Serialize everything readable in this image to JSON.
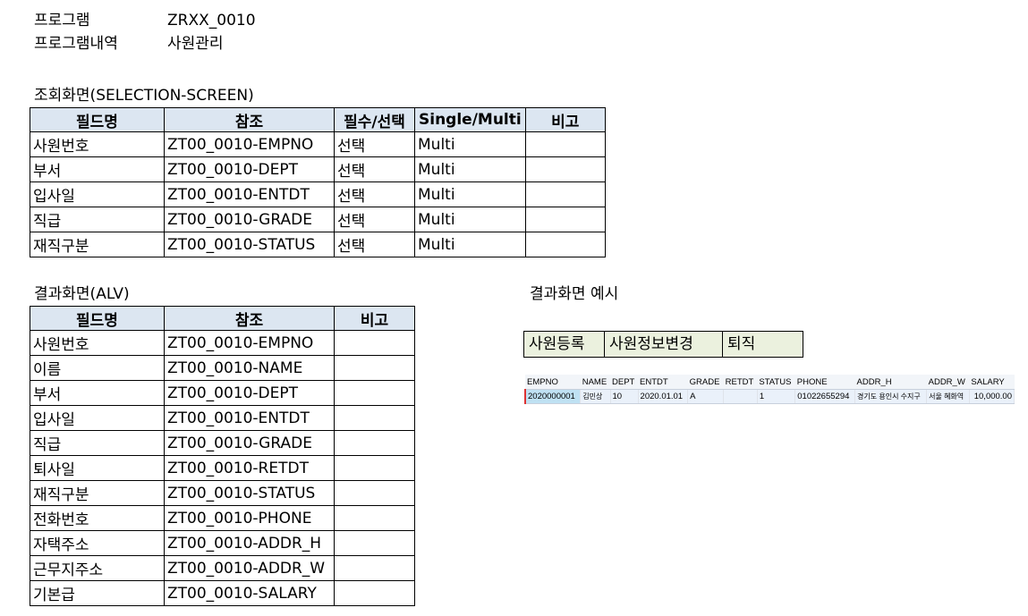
{
  "header": {
    "program_label": "프로그램",
    "program_value": "ZRXX_0010",
    "desc_label": "프로그램내역",
    "desc_value": "사원관리"
  },
  "selection": {
    "title": "조회화면(SELECTION-SCREEN)",
    "columns": [
      "필드명",
      "참조",
      "필수/선택",
      "Single/Multi",
      "비고"
    ],
    "rows": [
      [
        "사원번호",
        "ZT00_0010-EMPNO",
        "선택",
        "Multi",
        ""
      ],
      [
        "부서",
        "ZT00_0010-DEPT",
        "선택",
        "Multi",
        ""
      ],
      [
        "입사일",
        "ZT00_0010-ENTDT",
        "선택",
        "Multi",
        ""
      ],
      [
        "직급",
        "ZT00_0010-GRADE",
        "선택",
        "Multi",
        ""
      ],
      [
        "재직구분",
        "ZT00_0010-STATUS",
        "선택",
        "Multi",
        ""
      ]
    ]
  },
  "result": {
    "title": "결과화면(ALV)",
    "columns": [
      "필드명",
      "참조",
      "비고"
    ],
    "rows": [
      [
        "사원번호",
        "ZT00_0010-EMPNO",
        ""
      ],
      [
        "이름",
        "ZT00_0010-NAME",
        ""
      ],
      [
        "부서",
        "ZT00_0010-DEPT",
        ""
      ],
      [
        "입사일",
        "ZT00_0010-ENTDT",
        ""
      ],
      [
        "직급",
        "ZT00_0010-GRADE",
        ""
      ],
      [
        "퇴사일",
        "ZT00_0010-RETDT",
        ""
      ],
      [
        "재직구분",
        "ZT00_0010-STATUS",
        ""
      ],
      [
        "전화번호",
        "ZT00_0010-PHONE",
        ""
      ],
      [
        "자택주소",
        "ZT00_0010-ADDR_H",
        ""
      ],
      [
        "근무지주소",
        "ZT00_0010-ADDR_W",
        ""
      ],
      [
        "기본급",
        "ZT00_0010-SALARY",
        ""
      ]
    ]
  },
  "example": {
    "title": "결과화면 예시",
    "buttons": [
      "사원등록",
      "사원정보변경",
      "퇴직"
    ],
    "alv_columns": [
      "EMPNO",
      "NAME",
      "DEPT",
      "ENTDT",
      "GRADE",
      "RETDT",
      "STATUS",
      "PHONE",
      "ADDR_H",
      "ADDR_W",
      "SALARY"
    ],
    "alv_row": [
      "2020000001",
      "김민상",
      "10",
      "2020.01.01",
      "A",
      "",
      "1",
      "01022655294",
      "경기도 용인시 수지구",
      "서울 혜화역",
      "10,000.00"
    ]
  }
}
